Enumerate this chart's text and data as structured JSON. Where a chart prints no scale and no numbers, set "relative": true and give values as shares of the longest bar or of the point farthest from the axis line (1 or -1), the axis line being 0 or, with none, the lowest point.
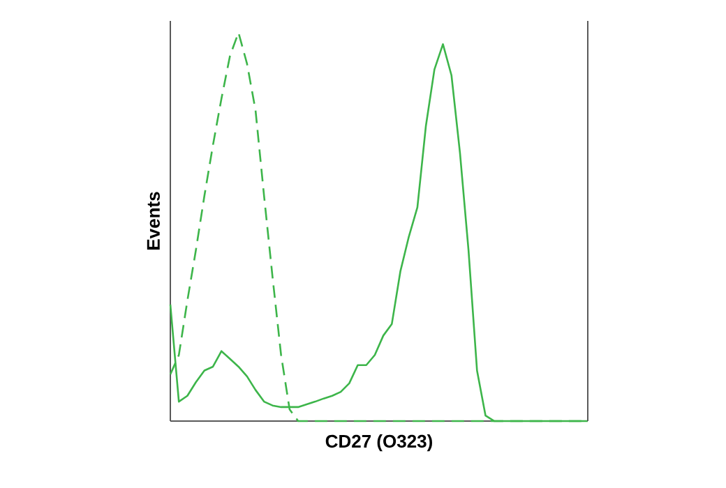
{
  "chart_data": {
    "type": "line",
    "xlabel": "CD27 (O323)",
    "ylabel": "Events",
    "relative": true,
    "categories": [
      null,
      null,
      null,
      null,
      null,
      null,
      null,
      null,
      null,
      null,
      null,
      null,
      null,
      null,
      null,
      null,
      null,
      null,
      null,
      null,
      null,
      null,
      null,
      null,
      null,
      null,
      null,
      null,
      null,
      null,
      null,
      null,
      null,
      null,
      null,
      null,
      null,
      null,
      null,
      null,
      null,
      null,
      null,
      null,
      null,
      null,
      null,
      null,
      null,
      null
    ],
    "series": [
      {
        "color": "#3db54a",
        "line_style": "dashed",
        "values": [
          0.12,
          0.17,
          0.31,
          0.44,
          0.58,
          0.71,
          0.83,
          0.94,
          1.0,
          0.92,
          0.8,
          0.58,
          0.37,
          0.17,
          0.03,
          0,
          0,
          0,
          0,
          0,
          0,
          0,
          0,
          0,
          0,
          0,
          0,
          0,
          0,
          0,
          0,
          0,
          0,
          0,
          0,
          0,
          0,
          0,
          0,
          0,
          0,
          0,
          0,
          0,
          0,
          0,
          0,
          0,
          0,
          0
        ]
      },
      {
        "color": "#3db54a",
        "line_style": "solid",
        "values": [
          0.3,
          0.05,
          0.065,
          0.1,
          0.13,
          0.14,
          0.18,
          0.16,
          0.14,
          0.115,
          0.08,
          0.05,
          0.04,
          0.036,
          0.036,
          0.036,
          0.043,
          0.05,
          0.058,
          0.065,
          0.075,
          0.097,
          0.144,
          0.144,
          0.17,
          0.22,
          0.25,
          0.385,
          0.475,
          0.55,
          0.76,
          0.905,
          0.97,
          0.89,
          0.69,
          0.44,
          0.13,
          0.014,
          0,
          0,
          0,
          0,
          0,
          0,
          0,
          0,
          0,
          0,
          0,
          0
        ]
      }
    ]
  }
}
